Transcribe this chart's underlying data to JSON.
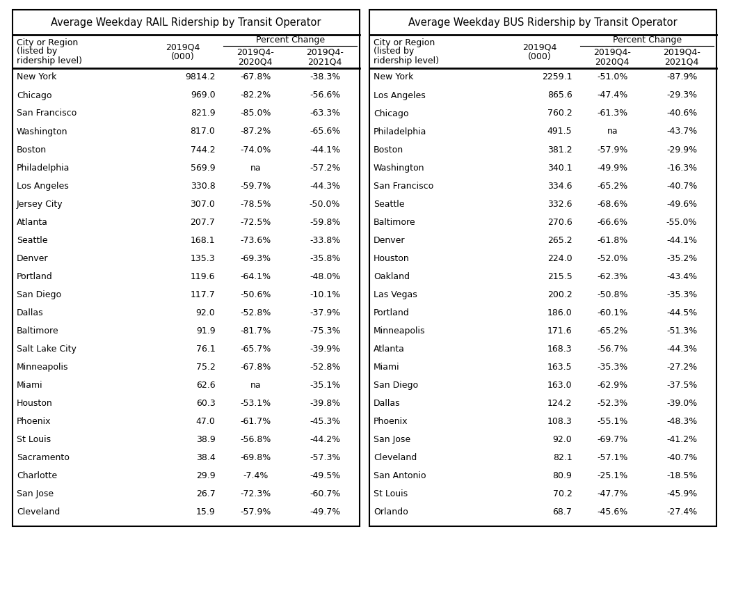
{
  "rail_title": "Average Weekday RAIL Ridership by Transit Operator",
  "bus_title": "Average Weekday BUS Ridership by Transit Operator",
  "rail_data": [
    [
      "New York",
      "9814.2",
      "-67.8%",
      "-38.3%"
    ],
    [
      "Chicago",
      "969.0",
      "-82.2%",
      "-56.6%"
    ],
    [
      "San Francisco",
      "821.9",
      "-85.0%",
      "-63.3%"
    ],
    [
      "Washington",
      "817.0",
      "-87.2%",
      "-65.6%"
    ],
    [
      "Boston",
      "744.2",
      "-74.0%",
      "-44.1%"
    ],
    [
      "Philadelphia",
      "569.9",
      "na",
      "-57.2%"
    ],
    [
      "Los Angeles",
      "330.8",
      "-59.7%",
      "-44.3%"
    ],
    [
      "Jersey City",
      "307.0",
      "-78.5%",
      "-50.0%"
    ],
    [
      "Atlanta",
      "207.7",
      "-72.5%",
      "-59.8%"
    ],
    [
      "Seattle",
      "168.1",
      "-73.6%",
      "-33.8%"
    ],
    [
      "Denver",
      "135.3",
      "-69.3%",
      "-35.8%"
    ],
    [
      "Portland",
      "119.6",
      "-64.1%",
      "-48.0%"
    ],
    [
      "San Diego",
      "117.7",
      "-50.6%",
      "-10.1%"
    ],
    [
      "Dallas",
      "92.0",
      "-52.8%",
      "-37.9%"
    ],
    [
      "Baltimore",
      "91.9",
      "-81.7%",
      "-75.3%"
    ],
    [
      "Salt Lake City",
      "76.1",
      "-65.7%",
      "-39.9%"
    ],
    [
      "Minneapolis",
      "75.2",
      "-67.8%",
      "-52.8%"
    ],
    [
      "Miami",
      "62.6",
      "na",
      "-35.1%"
    ],
    [
      "Houston",
      "60.3",
      "-53.1%",
      "-39.8%"
    ],
    [
      "Phoenix",
      "47.0",
      "-61.7%",
      "-45.3%"
    ],
    [
      "St Louis",
      "38.9",
      "-56.8%",
      "-44.2%"
    ],
    [
      "Sacramento",
      "38.4",
      "-69.8%",
      "-57.3%"
    ],
    [
      "Charlotte",
      "29.9",
      "-7.4%",
      "-49.5%"
    ],
    [
      "San Jose",
      "26.7",
      "-72.3%",
      "-60.7%"
    ],
    [
      "Cleveland",
      "15.9",
      "-57.9%",
      "-49.7%"
    ]
  ],
  "bus_data": [
    [
      "New York",
      "2259.1",
      "-51.0%",
      "-87.9%"
    ],
    [
      "Los Angeles",
      "865.6",
      "-47.4%",
      "-29.3%"
    ],
    [
      "Chicago",
      "760.2",
      "-61.3%",
      "-40.6%"
    ],
    [
      "Philadelphia",
      "491.5",
      "na",
      "-43.7%"
    ],
    [
      "Boston",
      "381.2",
      "-57.9%",
      "-29.9%"
    ],
    [
      "Washington",
      "340.1",
      "-49.9%",
      "-16.3%"
    ],
    [
      "San Francisco",
      "334.6",
      "-65.2%",
      "-40.7%"
    ],
    [
      "Seattle",
      "332.6",
      "-68.6%",
      "-49.6%"
    ],
    [
      "Baltimore",
      "270.6",
      "-66.6%",
      "-55.0%"
    ],
    [
      "Denver",
      "265.2",
      "-61.8%",
      "-44.1%"
    ],
    [
      "Houston",
      "224.0",
      "-52.0%",
      "-35.2%"
    ],
    [
      "Oakland",
      "215.5",
      "-62.3%",
      "-43.4%"
    ],
    [
      "Las Vegas",
      "200.2",
      "-50.8%",
      "-35.3%"
    ],
    [
      "Portland",
      "186.0",
      "-60.1%",
      "-44.5%"
    ],
    [
      "Minneapolis",
      "171.6",
      "-65.2%",
      "-51.3%"
    ],
    [
      "Atlanta",
      "168.3",
      "-56.7%",
      "-44.3%"
    ],
    [
      "Miami",
      "163.5",
      "-35.3%",
      "-27.2%"
    ],
    [
      "San Diego",
      "163.0",
      "-62.9%",
      "-37.5%"
    ],
    [
      "Dallas",
      "124.2",
      "-52.3%",
      "-39.0%"
    ],
    [
      "Phoenix",
      "108.3",
      "-55.1%",
      "-48.3%"
    ],
    [
      "San Jose",
      "92.0",
      "-69.7%",
      "-41.2%"
    ],
    [
      "Cleveland",
      "82.1",
      "-57.1%",
      "-40.7%"
    ],
    [
      "San Antonio",
      "80.9",
      "-25.1%",
      "-18.5%"
    ],
    [
      "St Louis",
      "70.2",
      "-47.7%",
      "-45.9%"
    ],
    [
      "Orlando",
      "68.7",
      "-45.6%",
      "-27.4%"
    ]
  ],
  "fs_title": 10.5,
  "fs_header": 9.0,
  "fs_data": 9.0
}
